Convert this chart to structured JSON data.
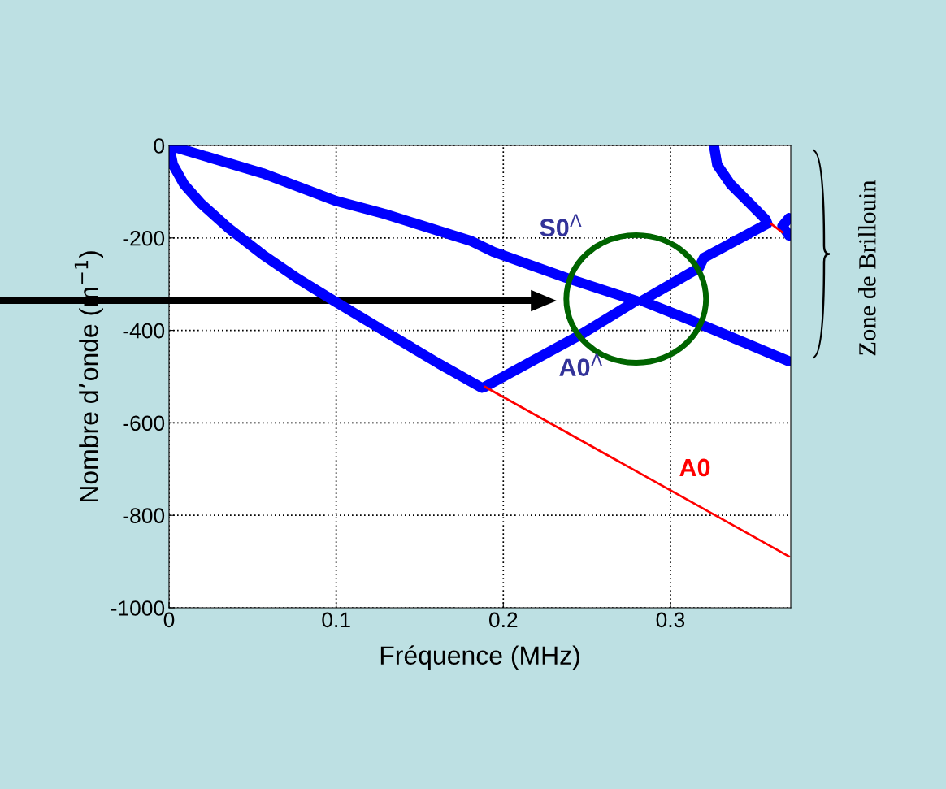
{
  "chart_data": {
    "type": "line",
    "xlabel": "Fréquence (MHz)",
    "ylabel": "Nombre d’onde (m$^{−1}$)",
    "xlim": [
      0,
      0.372
    ],
    "ylim": [
      -1000,
      0
    ],
    "xticks": [
      0,
      0.1,
      0.2,
      0.3
    ],
    "yticks": [
      -1000,
      -800,
      -600,
      -400,
      -200,
      0
    ],
    "grid": true,
    "line_style": "solid",
    "marker": "none",
    "series": [
      {
        "color": "#0000ff",
        "x": [
          0,
          0.0024,
          0.009,
          0.019,
          0.035,
          0.056,
          0.077,
          0.1,
          0.129,
          0.161,
          0.187,
          0.189,
          0.2455,
          0.2795,
          null,
          0.2795,
          0.239,
          0.194,
          0.181,
          0.129,
          0.1,
          0.056,
          0
        ],
        "values": [
          0,
          -42,
          -84,
          -125,
          -177,
          -236,
          -288,
          -339,
          -402,
          -471,
          -524,
          -522,
          -411,
          -336,
          null,
          -336,
          -288,
          -230,
          -207,
          -148,
          -120,
          -60,
          0
        ]
      },
      {
        "color": "#0000ff",
        "x": [
          0.326,
          0.328,
          0.336,
          0.346,
          0.357,
          0.358,
          0.32,
          0.317,
          0.283,
          0.3155,
          0.371
        ],
        "values": [
          0,
          -42,
          -84,
          -120,
          -160,
          -169,
          -243,
          -265,
          -336,
          -383,
          -467
        ]
      },
      {
        "color": "#0000ff",
        "x": [
          0.371,
          0.367,
          0.371
        ],
        "values": [
          -157,
          -174,
          -195
        ]
      },
      {
        "color": "#ff0000",
        "x": [
          0.189,
          0.371,
          null,
          0.36,
          0.367
        ],
        "values": [
          -522,
          -889,
          null,
          -169,
          -188
        ]
      }
    ],
    "annotations": [
      "S0$^{Λ}$",
      "A0$^{Λ}$",
      "A0",
      "Zone de Brillouin"
    ]
  }
}
